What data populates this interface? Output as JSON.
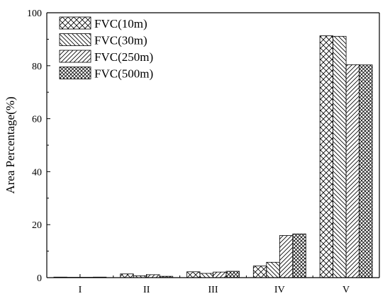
{
  "chart_data": {
    "type": "bar",
    "ylabel": "Area Percentage(%)",
    "xlabel": "",
    "ylim": [
      0,
      100
    ],
    "yticks": [
      0,
      20,
      40,
      60,
      80,
      100
    ],
    "categories": [
      "I",
      "II",
      "III",
      "IV",
      "V"
    ],
    "legend_position": "top-left",
    "series": [
      {
        "name": "FVC(10m)",
        "pattern": "crosshatch",
        "values": [
          0.2,
          1.4,
          2.2,
          4.4,
          91.3
        ]
      },
      {
        "name": "FVC(30m)",
        "pattern": "diagonal-down",
        "values": [
          0.1,
          0.7,
          1.6,
          5.8,
          91.1
        ]
      },
      {
        "name": "FVC(250m)",
        "pattern": "diagonal-up",
        "values": [
          0.1,
          1.1,
          2.1,
          15.9,
          80.4
        ]
      },
      {
        "name": "FVC(500m)",
        "pattern": "dense-crosshatch",
        "values": [
          0.2,
          0.5,
          2.4,
          16.5,
          80.3
        ]
      }
    ],
    "colors": {
      "bar_fill": "#ffffff",
      "bar_stroke": "#000000",
      "axis": "#000000"
    }
  }
}
